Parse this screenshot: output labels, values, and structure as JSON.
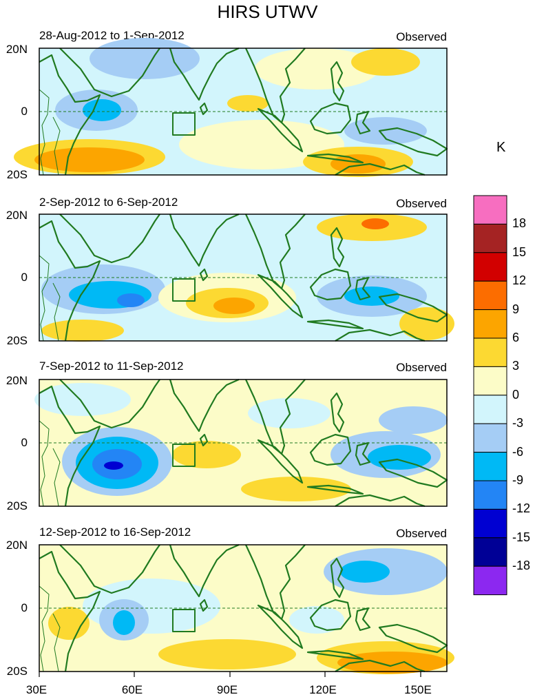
{
  "title": "HIRS UTWV",
  "panels": [
    {
      "date": "28-Aug-2012 to 1-Sep-2012",
      "tag": "Observed"
    },
    {
      "date": "2-Sep-2012 to 6-Sep-2012",
      "tag": "Observed"
    },
    {
      "date": "7-Sep-2012 to 11-Sep-2012",
      "tag": "Observed"
    },
    {
      "date": "12-Sep-2012 to 16-Sep-2012",
      "tag": "Observed"
    }
  ],
  "lat_labels": [
    "20N",
    "0",
    "20S"
  ],
  "lon_labels": [
    "30E",
    "60E",
    "90E",
    "120E",
    "150E"
  ],
  "colorbar": {
    "unit": "K",
    "labels": [
      "18",
      "15",
      "12",
      "9",
      "6",
      "3",
      "0",
      "-3",
      "-6",
      "-9",
      "-12",
      "-15",
      "-18"
    ],
    "colors": [
      "#f76ec0",
      "#a52323",
      "#d20000",
      "#fc6d00",
      "#fca500",
      "#fcd932",
      "#fcfcc8",
      "#d2f5fc",
      "#a5cdf5",
      "#00b9f5",
      "#2385f5",
      "#0000d2",
      "#000096",
      "#8c28f0"
    ]
  },
  "palette": {
    "land": "#207a20",
    "warm1": "#fcfcc8",
    "warm2": "#fcd932",
    "warm3": "#fca500",
    "cool1": "#d2f5fc",
    "cool2": "#a5cdf5",
    "cool3": "#00b9f5",
    "cool4": "#2385f5",
    "cool5": "#0000d2"
  }
}
